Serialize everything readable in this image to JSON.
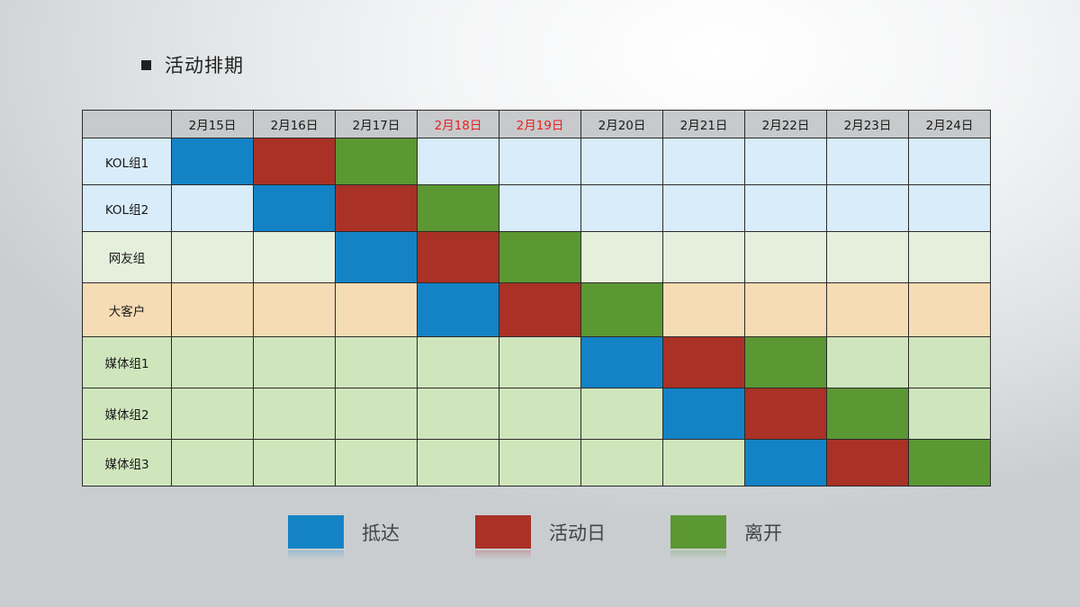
{
  "title": "活动排期",
  "colors": {
    "arrive": "#1483c6",
    "event": "#a93125",
    "leave": "#5b9733",
    "highlight_date": "#e8201f"
  },
  "dates": [
    "2月15日",
    "2月16日",
    "2月17日",
    "2月18日",
    "2月19日",
    "2月20日",
    "2月21日",
    "2月22日",
    "2月23日",
    "2月24日"
  ],
  "highlighted_dates": [
    "2月18日",
    "2月19日"
  ],
  "groups": [
    {
      "name": "KOL组1",
      "arrive": "2月15日",
      "event": "2月16日",
      "leave": "2月17日"
    },
    {
      "name": "KOL组2",
      "arrive": "2月16日",
      "event": "2月17日",
      "leave": "2月18日"
    },
    {
      "name": "网友组",
      "arrive": "2月17日",
      "event": "2月18日",
      "leave": "2月19日"
    },
    {
      "name": "大客户",
      "arrive": "2月18日",
      "event": "2月19日",
      "leave": "2月20日"
    },
    {
      "name": "媒体组1",
      "arrive": "2月20日",
      "event": "2月21日",
      "leave": "2月22日"
    },
    {
      "name": "媒体组2",
      "arrive": "2月21日",
      "event": "2月22日",
      "leave": "2月23日"
    },
    {
      "name": "媒体组3",
      "arrive": "2月22日",
      "event": "2月23日",
      "leave": "2月24日"
    }
  ],
  "legend": {
    "arrive": "抵达",
    "event": "活动日",
    "leave": "离开"
  }
}
